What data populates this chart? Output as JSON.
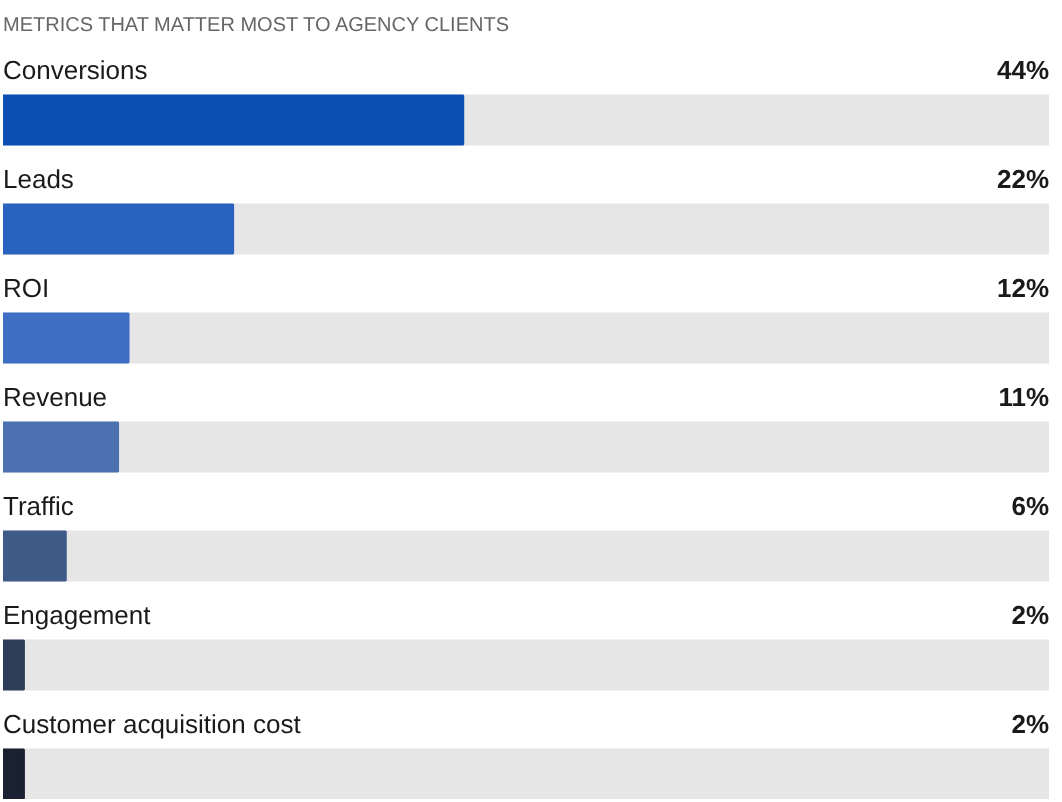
{
  "chart_data": {
    "type": "bar",
    "orientation": "horizontal",
    "title": "METRICS THAT MATTER MOST TO AGENCY CLIENTS",
    "categories": [
      "Conversions",
      "Leads",
      "ROI",
      "Revenue",
      "Traffic",
      "Engagement",
      "Customer acquisition cost"
    ],
    "values": [
      44,
      22,
      12,
      11,
      6,
      2,
      2
    ],
    "colors": [
      "#0b4fb3",
      "#2a62c0",
      "#3f6fc4",
      "#4d70b0",
      "#3e5a86",
      "#2f3e58",
      "#1a2130"
    ],
    "value_labels": [
      "44%",
      "22%",
      "12%",
      "11%",
      "6%",
      "2%",
      "2%"
    ],
    "xlim": [
      0,
      100
    ],
    "tick_labels": false
  }
}
